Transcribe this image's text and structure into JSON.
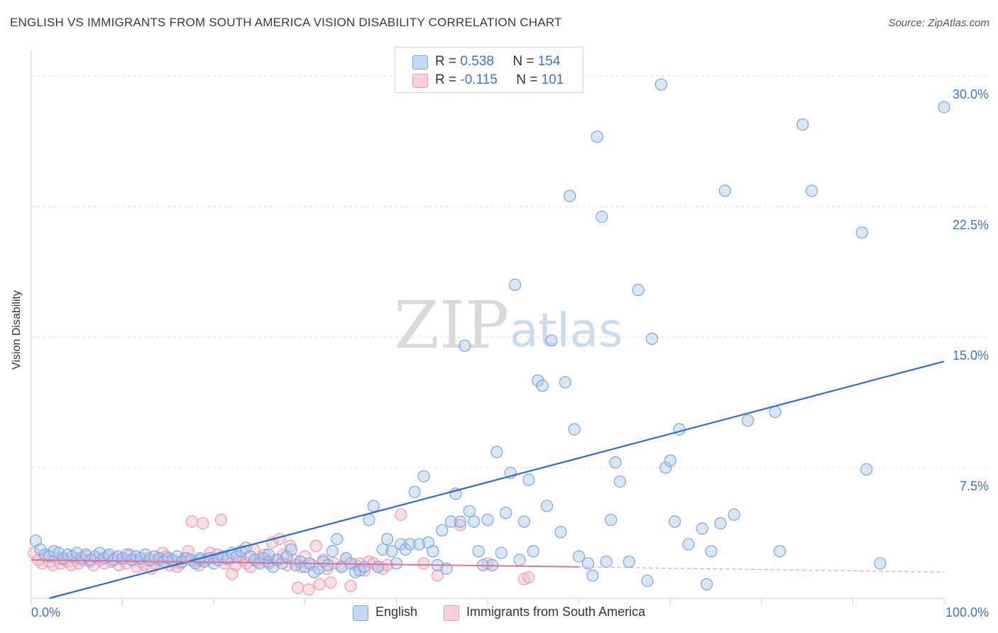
{
  "title": "ENGLISH VS IMMIGRANTS FROM SOUTH AMERICA VISION DISABILITY CORRELATION CHART",
  "source": "Source: ZipAtlas.com",
  "watermark": {
    "zip": "ZIP",
    "atlas": "atlas"
  },
  "legend_top": {
    "rows": [
      {
        "r_label": "R =",
        "r_value": "0.538",
        "n_label": "N =",
        "n_value": "154"
      },
      {
        "r_label": "R =",
        "r_value": "-0.115",
        "n_label": "N =",
        "n_value": "101"
      }
    ]
  },
  "legend_bottom": {
    "english": "English",
    "immigrants": "Immigrants from South America"
  },
  "colors": {
    "english_fill": "#aac8ee",
    "english_stroke": "#7aa7dc",
    "english_line": "#2c6fcb",
    "immigrants_fill": "#f6b9cb",
    "immigrants_stroke": "#ef9ab3",
    "immigrants_line": "#e0719a",
    "tick_label": "#3a76c4",
    "grid": "#dddddd"
  },
  "chart_data": {
    "type": "scatter",
    "title": "ENGLISH VS IMMIGRANTS FROM SOUTH AMERICA VISION DISABILITY CORRELATION CHART",
    "xlabel": "",
    "ylabel": "Vision Disability",
    "xlim": [
      0,
      100
    ],
    "ylim": [
      0,
      31.5
    ],
    "x_tick_labels": [
      "0.0%",
      "100.0%"
    ],
    "y_ticks": [
      7.5,
      15.0,
      22.5,
      30.0
    ],
    "y_tick_labels": [
      "7.5%",
      "15.0%",
      "22.5%",
      "30.0%"
    ],
    "grid": true,
    "legend_position": "top-center",
    "series": [
      {
        "name": "English",
        "r": 0.538,
        "n": 154,
        "trend": {
          "x": [
            2,
            100
          ],
          "y": [
            0.0,
            13.6
          ]
        },
        "points": [
          [
            0.5,
            3.3
          ],
          [
            1.0,
            2.8
          ],
          [
            1.5,
            2.5
          ],
          [
            2.0,
            2.4
          ],
          [
            2.5,
            2.7
          ],
          [
            3.0,
            2.6
          ],
          [
            3.5,
            2.3
          ],
          [
            4.0,
            2.5
          ],
          [
            4.5,
            2.4
          ],
          [
            5.0,
            2.6
          ],
          [
            5.5,
            2.3
          ],
          [
            6.0,
            2.5
          ],
          [
            6.5,
            2.2
          ],
          [
            7.0,
            2.4
          ],
          [
            7.5,
            2.6
          ],
          [
            8.0,
            2.3
          ],
          [
            8.5,
            2.5
          ],
          [
            9.0,
            2.2
          ],
          [
            9.5,
            2.4
          ],
          [
            10.0,
            2.3
          ],
          [
            10.5,
            2.5
          ],
          [
            11.0,
            2.2
          ],
          [
            11.5,
            2.4
          ],
          [
            12.0,
            2.3
          ],
          [
            12.5,
            2.5
          ],
          [
            13.0,
            2.2
          ],
          [
            13.5,
            2.4
          ],
          [
            14.0,
            2.3
          ],
          [
            14.5,
            2.1
          ],
          [
            15.0,
            2.3
          ],
          [
            15.5,
            2.2
          ],
          [
            16.0,
            2.4
          ],
          [
            16.5,
            2.1
          ],
          [
            17.0,
            2.3
          ],
          [
            17.5,
            2.2
          ],
          [
            18.0,
            2.0
          ],
          [
            18.5,
            2.2
          ],
          [
            19.0,
            2.1
          ],
          [
            19.5,
            2.3
          ],
          [
            20.0,
            2.0
          ],
          [
            20.5,
            2.2
          ],
          [
            21.0,
            2.4
          ],
          [
            21.5,
            2.3
          ],
          [
            22.0,
            2.6
          ],
          [
            22.5,
            2.4
          ],
          [
            23.0,
            2.7
          ],
          [
            23.5,
            2.9
          ],
          [
            24.0,
            2.4
          ],
          [
            24.5,
            2.2
          ],
          [
            25.0,
            2.0
          ],
          [
            25.5,
            2.3
          ],
          [
            26.0,
            2.1
          ],
          [
            26.5,
            1.8
          ],
          [
            27.0,
            2.2
          ],
          [
            27.5,
            2.0
          ],
          [
            28.0,
            2.4
          ],
          [
            28.5,
            2.8
          ],
          [
            29.0,
            1.9
          ],
          [
            29.5,
            2.1
          ],
          [
            30.0,
            1.8
          ],
          [
            30.5,
            2.0
          ],
          [
            31.0,
            1.5
          ],
          [
            31.5,
            1.7
          ],
          [
            32.0,
            2.1
          ],
          [
            32.5,
            1.9
          ],
          [
            33.0,
            2.7
          ],
          [
            33.5,
            3.4
          ],
          [
            34.0,
            1.8
          ],
          [
            34.5,
            2.3
          ],
          [
            35.0,
            2.0
          ],
          [
            35.5,
            1.5
          ],
          [
            36.0,
            1.6
          ],
          [
            36.5,
            1.8
          ],
          [
            37.0,
            4.5
          ],
          [
            37.5,
            5.3
          ],
          [
            38.0,
            1.8
          ],
          [
            38.5,
            2.8
          ],
          [
            39.0,
            3.4
          ],
          [
            39.5,
            2.7
          ],
          [
            40.0,
            2.0
          ],
          [
            40.5,
            3.1
          ],
          [
            41.0,
            2.8
          ],
          [
            41.5,
            3.1
          ],
          [
            42.0,
            6.1
          ],
          [
            42.5,
            3.1
          ],
          [
            43.0,
            7.0
          ],
          [
            43.5,
            3.2
          ],
          [
            44.0,
            2.7
          ],
          [
            44.5,
            1.9
          ],
          [
            45.0,
            3.9
          ],
          [
            45.5,
            1.7
          ],
          [
            46.0,
            4.4
          ],
          [
            46.5,
            6.0
          ],
          [
            47.0,
            4.4
          ],
          [
            47.5,
            14.5
          ],
          [
            48.0,
            5.0
          ],
          [
            48.5,
            4.4
          ],
          [
            49.0,
            2.7
          ],
          [
            49.5,
            1.9
          ],
          [
            50.0,
            4.5
          ],
          [
            50.5,
            1.9
          ],
          [
            51.0,
            8.4
          ],
          [
            51.5,
            2.6
          ],
          [
            52.0,
            4.9
          ],
          [
            52.5,
            7.2
          ],
          [
            53.0,
            18.0
          ],
          [
            53.5,
            2.2
          ],
          [
            54.0,
            4.4
          ],
          [
            54.5,
            6.8
          ],
          [
            55.0,
            2.7
          ],
          [
            55.5,
            12.5
          ],
          [
            56.0,
            12.2
          ],
          [
            56.5,
            5.3
          ],
          [
            57.0,
            14.8
          ],
          [
            58.0,
            3.8
          ],
          [
            58.5,
            12.4
          ],
          [
            59.0,
            23.1
          ],
          [
            59.5,
            9.7
          ],
          [
            60.0,
            2.4
          ],
          [
            61.0,
            2.0
          ],
          [
            61.5,
            1.3
          ],
          [
            62.0,
            26.5
          ],
          [
            62.5,
            21.9
          ],
          [
            63.0,
            2.1
          ],
          [
            63.5,
            4.5
          ],
          [
            64.0,
            7.8
          ],
          [
            64.5,
            6.7
          ],
          [
            65.5,
            2.1
          ],
          [
            66.5,
            17.7
          ],
          [
            67.5,
            1.0
          ],
          [
            68.0,
            14.9
          ],
          [
            69.5,
            7.5
          ],
          [
            70.0,
            7.9
          ],
          [
            70.5,
            4.4
          ],
          [
            71.0,
            9.7
          ],
          [
            72.0,
            3.1
          ],
          [
            73.5,
            4.0
          ],
          [
            74.0,
            0.8
          ],
          [
            74.5,
            2.7
          ],
          [
            75.5,
            4.3
          ],
          [
            76.0,
            23.4
          ],
          [
            77.0,
            4.8
          ],
          [
            78.5,
            10.2
          ],
          [
            81.5,
            10.7
          ],
          [
            82.0,
            2.7
          ],
          [
            84.5,
            27.2
          ],
          [
            85.5,
            23.4
          ],
          [
            91.0,
            21.0
          ],
          [
            91.5,
            7.4
          ],
          [
            93.0,
            2.0
          ],
          [
            69.0,
            29.5
          ],
          [
            100.0,
            28.2
          ],
          [
            18.5,
            2.3
          ],
          [
            26.0,
            2.5
          ]
        ]
      },
      {
        "name": "Immigrants from South America",
        "r": -0.115,
        "n": 101,
        "trend": {
          "x": [
            0,
            60
          ],
          "y": [
            2.2,
            1.8
          ]
        },
        "trend_dashed": {
          "x": [
            60,
            100
          ],
          "y": [
            1.8,
            1.5
          ]
        },
        "points": [
          [
            0.3,
            2.6
          ],
          [
            0.8,
            2.2
          ],
          [
            1.2,
            2.0
          ],
          [
            1.6,
            2.4
          ],
          [
            2.0,
            2.1
          ],
          [
            2.4,
            1.9
          ],
          [
            2.8,
            2.3
          ],
          [
            3.2,
            2.0
          ],
          [
            3.6,
            2.2
          ],
          [
            4.0,
            2.1
          ],
          [
            4.4,
            1.9
          ],
          [
            4.8,
            2.3
          ],
          [
            5.2,
            2.0
          ],
          [
            5.6,
            2.2
          ],
          [
            6.0,
            2.4
          ],
          [
            6.4,
            2.1
          ],
          [
            6.8,
            1.9
          ],
          [
            7.2,
            2.3
          ],
          [
            7.6,
            2.2
          ],
          [
            8.0,
            2.0
          ],
          [
            8.4,
            2.4
          ],
          [
            8.8,
            2.1
          ],
          [
            9.2,
            2.3
          ],
          [
            9.6,
            1.9
          ],
          [
            10.0,
            2.2
          ],
          [
            10.4,
            2.0
          ],
          [
            10.8,
            2.5
          ],
          [
            11.2,
            2.2
          ],
          [
            11.6,
            1.8
          ],
          [
            12.0,
            2.1
          ],
          [
            12.4,
            1.9
          ],
          [
            12.8,
            2.3
          ],
          [
            13.2,
            1.7
          ],
          [
            13.6,
            2.0
          ],
          [
            14.0,
            2.2
          ],
          [
            14.4,
            2.6
          ],
          [
            14.8,
            2.4
          ],
          [
            15.2,
            1.9
          ],
          [
            15.6,
            2.1
          ],
          [
            16.0,
            1.8
          ],
          [
            16.4,
            2.0
          ],
          [
            16.8,
            2.3
          ],
          [
            17.2,
            2.7
          ],
          [
            17.6,
            4.4
          ],
          [
            18.0,
            2.1
          ],
          [
            18.4,
            1.9
          ],
          [
            18.8,
            4.3
          ],
          [
            19.2,
            2.2
          ],
          [
            19.6,
            2.6
          ],
          [
            20.0,
            2.3
          ],
          [
            20.4,
            2.5
          ],
          [
            20.8,
            4.5
          ],
          [
            21.2,
            2.0
          ],
          [
            21.6,
            2.2
          ],
          [
            22.0,
            1.4
          ],
          [
            22.4,
            1.9
          ],
          [
            22.8,
            2.4
          ],
          [
            23.2,
            2.2
          ],
          [
            23.6,
            2.0
          ],
          [
            24.0,
            1.8
          ],
          [
            24.4,
            2.8
          ],
          [
            24.8,
            2.1
          ],
          [
            25.2,
            2.3
          ],
          [
            25.6,
            2.5
          ],
          [
            26.0,
            2.0
          ],
          [
            26.4,
            3.2
          ],
          [
            26.8,
            2.2
          ],
          [
            27.2,
            3.4
          ],
          [
            27.6,
            2.5
          ],
          [
            28.0,
            1.9
          ],
          [
            28.4,
            3.0
          ],
          [
            28.8,
            2.2
          ],
          [
            29.2,
            0.6
          ],
          [
            29.6,
            1.8
          ],
          [
            30.0,
            2.4
          ],
          [
            30.4,
            0.5
          ],
          [
            30.8,
            1.9
          ],
          [
            31.2,
            3.0
          ],
          [
            31.6,
            0.8
          ],
          [
            32.0,
            2.2
          ],
          [
            32.4,
            1.7
          ],
          [
            32.8,
            0.9
          ],
          [
            33.2,
            2.0
          ],
          [
            34.0,
            1.8
          ],
          [
            34.5,
            2.3
          ],
          [
            35.0,
            0.7
          ],
          [
            35.5,
            1.9
          ],
          [
            36.0,
            2.0
          ],
          [
            36.5,
            1.6
          ],
          [
            37.0,
            2.1
          ],
          [
            37.5,
            2.0
          ],
          [
            38.0,
            1.8
          ],
          [
            38.5,
            1.7
          ],
          [
            39.0,
            1.9
          ],
          [
            40.5,
            4.8
          ],
          [
            43.0,
            2.0
          ],
          [
            44.5,
            1.3
          ],
          [
            47.0,
            4.2
          ],
          [
            50.0,
            2.0
          ],
          [
            54.0,
            1.1
          ],
          [
            54.5,
            1.2
          ]
        ]
      }
    ]
  }
}
